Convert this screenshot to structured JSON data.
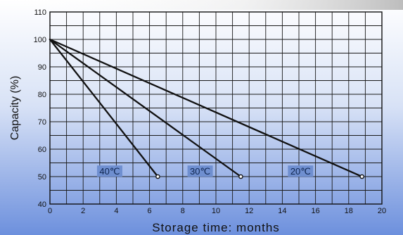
{
  "chart_data": {
    "type": "line",
    "xlabel": "Storage time: months",
    "ylabel": "Capacity (%)",
    "xlim": [
      0,
      20
    ],
    "ylim": [
      40,
      110
    ],
    "x_ticks": [
      "0",
      "2",
      "4",
      "6",
      "8",
      "10",
      "12",
      "14",
      "16",
      "18",
      "20"
    ],
    "y_ticks": [
      "40",
      "50",
      "60",
      "70",
      "80",
      "90",
      "100",
      "110"
    ],
    "grid": true,
    "series": [
      {
        "name": "40℃",
        "x": [
          0,
          6.5
        ],
        "y": [
          100,
          50
        ]
      },
      {
        "name": "30℃",
        "x": [
          0,
          11.5
        ],
        "y": [
          100,
          50
        ]
      },
      {
        "name": "20℃",
        "x": [
          0,
          18.8
        ],
        "y": [
          100,
          50
        ]
      }
    ],
    "colors": {
      "line": "#111111",
      "grid": "#1a1a1a",
      "label_box": "#6f8fd0",
      "background_top": "#ffffff",
      "background_bottom": "#6d90dd"
    }
  }
}
